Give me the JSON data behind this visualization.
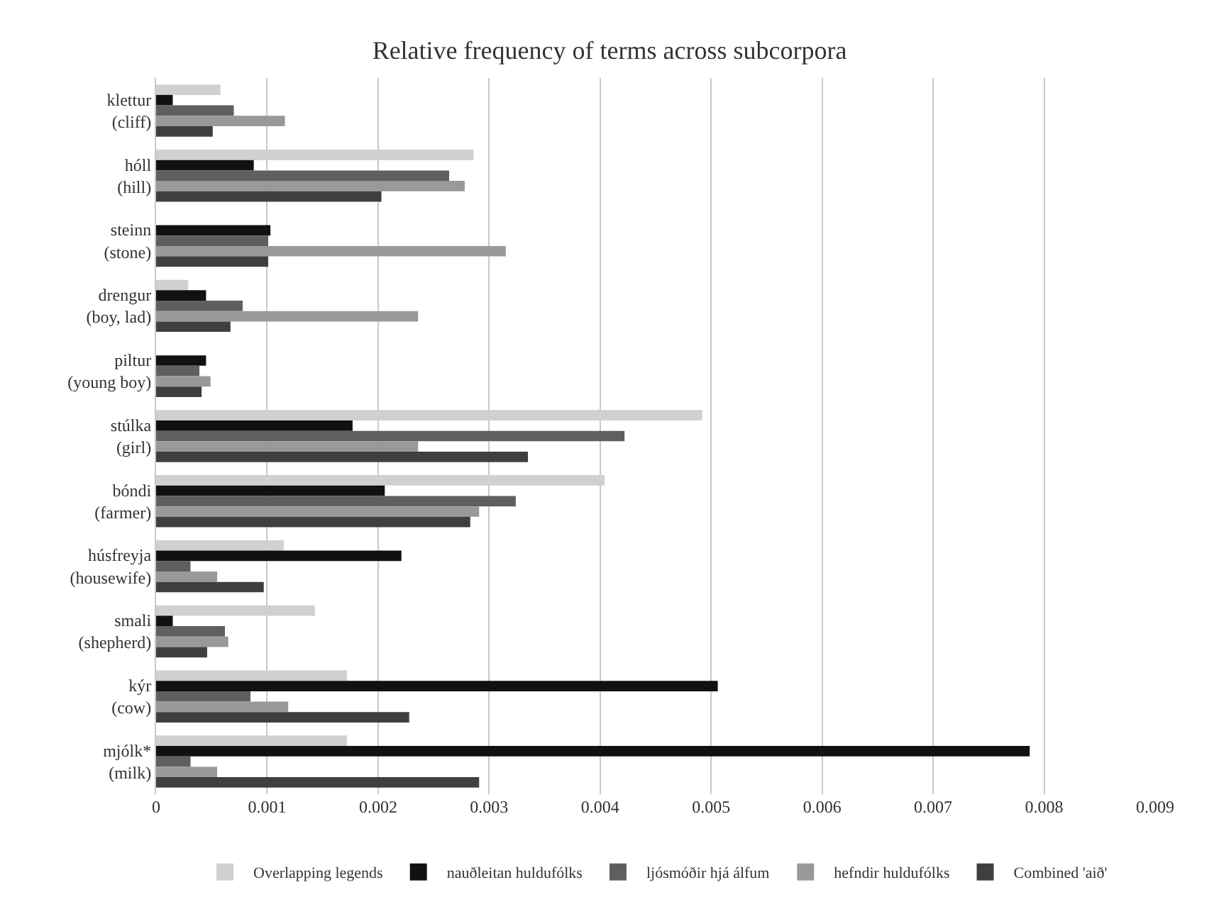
{
  "chart_data": {
    "type": "bar",
    "orientation": "horizontal",
    "title": "Relative frequency of terms across subcorpora",
    "categories": [
      "klettur\n(cliff)",
      "hóll\n(hill)",
      "steinn\n(stone)",
      "drengur\n(boy, lad)",
      "piltur\n(young boy)",
      "stúlka\n(girl)",
      "bóndi\n(farmer)",
      "húsfreyja\n(housewife)",
      "smali\n(shepherd)",
      "kýr\n(cow)",
      "mjólk*\n(milk)"
    ],
    "series": [
      {
        "name": "Overlapping legends",
        "color": "#d0d0d0",
        "values": [
          0.00058,
          0.00286,
          null,
          0.00029,
          null,
          0.00492,
          0.00404,
          0.00115,
          0.00143,
          0.00172,
          0.00172
        ]
      },
      {
        "name": "nauðleitan huldufólks",
        "color": "#111111",
        "values": [
          0.00015,
          0.00088,
          0.00103,
          0.00045,
          0.00045,
          0.00177,
          0.00206,
          0.00221,
          0.00015,
          0.00506,
          0.00787
        ]
      },
      {
        "name": "ljósmóðir hjá álfum",
        "color": "#5f5f5f",
        "values": [
          0.0007,
          0.00264,
          0.00101,
          0.00078,
          0.00039,
          0.00422,
          0.00324,
          0.00031,
          0.00062,
          0.00085,
          0.00031
        ]
      },
      {
        "name": "hefndir huldufólks",
        "color": "#999999",
        "values": [
          0.00116,
          0.00278,
          0.00315,
          0.00236,
          0.00049,
          0.00236,
          0.00291,
          0.00055,
          0.00065,
          0.00119,
          0.00055
        ]
      },
      {
        "name": "Combined 'aið'",
        "color": "#3f3f3f",
        "values": [
          0.00051,
          0.00203,
          0.00101,
          0.00067,
          0.00041,
          0.00335,
          0.00283,
          0.00097,
          0.00046,
          0.00228,
          0.00291
        ]
      }
    ],
    "xlim": [
      0,
      0.009
    ],
    "xticks": [
      0,
      0.001,
      0.002,
      0.003,
      0.004,
      0.005,
      0.006,
      0.007,
      0.008,
      0.009
    ],
    "grid": "x",
    "legend": "bottom"
  }
}
